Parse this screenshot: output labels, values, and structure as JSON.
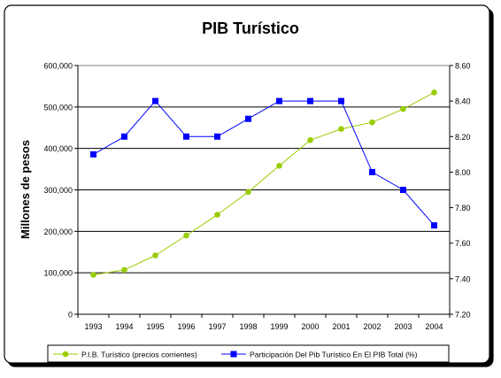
{
  "chart_data": {
    "type": "line",
    "title": "PIB Turístico",
    "ylabel": "Millones de pesos",
    "categories": [
      "1993",
      "1994",
      "1995",
      "1996",
      "1997",
      "1998",
      "1999",
      "2000",
      "2001",
      "2002",
      "2003",
      "2004"
    ],
    "ylim": [
      0,
      600000
    ],
    "y_ticks": [
      "0",
      "100,000",
      "200,000",
      "300,000",
      "400,000",
      "500,000",
      "600,000"
    ],
    "y2lim": [
      7.2,
      8.6
    ],
    "y2_ticks": [
      "7.20",
      "7.40",
      "7.60",
      "7.80",
      "8.00",
      "8.20",
      "8.40",
      "8.60"
    ],
    "grid": true,
    "legend_position": "bottom",
    "series": [
      {
        "name": "P.I.B. Turístico (precios corrientes)",
        "axis": "left",
        "color": "#99cc00",
        "marker": "circle",
        "values": [
          95000,
          107000,
          142000,
          190000,
          240000,
          295000,
          358000,
          420000,
          447000,
          463000,
          495000,
          535000
        ]
      },
      {
        "name": "Participación Del Pib Turístico En El PIB Total (%)",
        "axis": "right",
        "color": "#0000ff",
        "marker": "square",
        "values": [
          8.1,
          8.2,
          8.4,
          8.2,
          8.2,
          8.3,
          8.4,
          8.4,
          8.4,
          8.0,
          7.9,
          7.7
        ]
      }
    ]
  }
}
